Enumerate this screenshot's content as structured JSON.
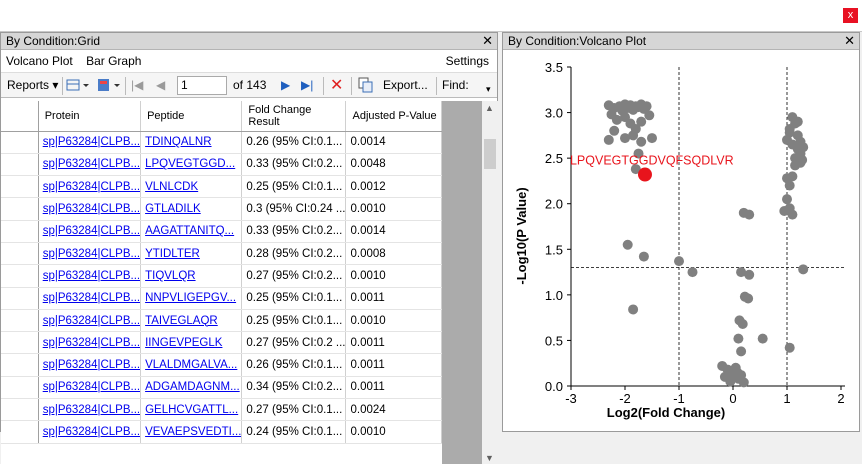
{
  "window": {
    "close_label": "x"
  },
  "grid_panel": {
    "title": "By Condition:Grid",
    "close": "✕",
    "menu": {
      "volcano": "Volcano Plot",
      "bar": "Bar Graph",
      "settings": "Settings"
    },
    "toolbar": {
      "reports": "Reports",
      "page": "1",
      "of_pages": "of 143",
      "export": "Export...",
      "find": "Find:"
    },
    "columns": [
      "Protein",
      "Peptide",
      "Fold Change Result",
      "Adjusted P-Value"
    ],
    "rows": [
      [
        "sp|P63284|CLPB...",
        "TDINQALNR",
        "0.26 (95% CI:0.1...",
        "0.0014"
      ],
      [
        "sp|P63284|CLPB...",
        "LPQVEGTGGD...",
        "0.33 (95% CI:0.2...",
        "0.0048"
      ],
      [
        "sp|P63284|CLPB...",
        "VLNLCDK",
        "0.25 (95% CI:0.1...",
        "0.0012"
      ],
      [
        "sp|P63284|CLPB...",
        "GTLADILK",
        "0.3 (95% CI:0.24 ...",
        "0.0010"
      ],
      [
        "sp|P63284|CLPB...",
        "AAGATTANITQ...",
        "0.33 (95% CI:0.2...",
        "0.0014"
      ],
      [
        "sp|P63284|CLPB...",
        "YTIDLTER",
        "0.28 (95% CI:0.2...",
        "0.0008"
      ],
      [
        "sp|P63284|CLPB...",
        "TIQVLQR",
        "0.27 (95% CI:0.2...",
        "0.0010"
      ],
      [
        "sp|P63284|CLPB...",
        "NNPVLIGEPGV...",
        "0.25 (95% CI:0.1...",
        "0.0011"
      ],
      [
        "sp|P63284|CLPB...",
        "TAIVEGLAQR",
        "0.25 (95% CI:0.1...",
        "0.0010"
      ],
      [
        "sp|P63284|CLPB...",
        "IINGEVPEGLK",
        "0.27 (95% CI:0.2 ...",
        "0.0011"
      ],
      [
        "sp|P63284|CLPB...",
        "VLALDMGALVA...",
        "0.26 (95% CI:0.1...",
        "0.0011"
      ],
      [
        "sp|P63284|CLPB...",
        "ADGAMDAGNM...",
        "0.34 (95% CI:0.2...",
        "0.0011"
      ],
      [
        "sp|P63284|CLPB...",
        "GELHCVGATTL...",
        "0.27 (95% CI:0.1...",
        "0.0024"
      ],
      [
        "sp|P63284|CLPB...",
        "VEVAEPSVEDTI...",
        "0.24 (95% CI:0.1...",
        "0.0010"
      ]
    ]
  },
  "plot_panel": {
    "title": "By Condition:Volcano Plot",
    "close": "✕"
  },
  "chart_data": {
    "type": "scatter",
    "xlabel": "Log2(Fold Change)",
    "ylabel": "-Log10(P Value)",
    "xlim": [
      -3,
      2
    ],
    "ylim": [
      0,
      3.5
    ],
    "xticks": [
      "-3",
      "-2",
      "-1",
      "0",
      "1",
      "2"
    ],
    "yticks": [
      "0.0",
      "0.5",
      "1.0",
      "1.5",
      "2.0",
      "2.5",
      "3.0",
      "3.5"
    ],
    "thresholds": {
      "x": [
        -1,
        1
      ],
      "y": 1.3
    },
    "highlight": {
      "label": "LPQVEGTGGDVQFSQDLVR",
      "x": -1.63,
      "y": 2.32,
      "color": "#e8141c"
    },
    "point_color": "#808080",
    "points": [
      [
        -2.3,
        3.08
      ],
      [
        -2.2,
        3.05
      ],
      [
        -2.1,
        3.07
      ],
      [
        -2.05,
        3.02
      ],
      [
        -2.0,
        3.09
      ],
      [
        -1.95,
        3.05
      ],
      [
        -1.9,
        3.08
      ],
      [
        -1.85,
        3.03
      ],
      [
        -1.8,
        3.07
      ],
      [
        -1.75,
        3.06
      ],
      [
        -1.7,
        3.09
      ],
      [
        -1.65,
        3.04
      ],
      [
        -1.6,
        3.07
      ],
      [
        -2.25,
        2.98
      ],
      [
        -2.15,
        2.92
      ],
      [
        -2.0,
        2.95
      ],
      [
        -1.9,
        2.88
      ],
      [
        -1.8,
        2.82
      ],
      [
        -1.7,
        2.9
      ],
      [
        -1.55,
        2.97
      ],
      [
        -2.2,
        2.8
      ],
      [
        -2.0,
        2.72
      ],
      [
        -1.85,
        2.75
      ],
      [
        -1.7,
        2.68
      ],
      [
        -1.5,
        2.72
      ],
      [
        -2.3,
        2.7
      ],
      [
        -1.75,
        2.55
      ],
      [
        -1.8,
        2.38
      ],
      [
        -1.95,
        1.55
      ],
      [
        -1.65,
        1.42
      ],
      [
        -1.85,
        0.84
      ],
      [
        -1.0,
        1.37
      ],
      [
        -0.75,
        1.25
      ],
      [
        0.2,
        1.9
      ],
      [
        0.3,
        1.88
      ],
      [
        0.15,
        1.25
      ],
      [
        0.3,
        1.22
      ],
      [
        0.22,
        0.98
      ],
      [
        0.28,
        0.96
      ],
      [
        0.12,
        0.72
      ],
      [
        0.18,
        0.68
      ],
      [
        0.1,
        0.52
      ],
      [
        0.15,
        0.38
      ],
      [
        0.55,
        0.52
      ],
      [
        -0.2,
        0.22
      ],
      [
        -0.1,
        0.18
      ],
      [
        0.0,
        0.12
      ],
      [
        0.05,
        0.2
      ],
      [
        0.1,
        0.08
      ],
      [
        -0.05,
        0.05
      ],
      [
        0.08,
        0.15
      ],
      [
        0.15,
        0.12
      ],
      [
        0.2,
        0.04
      ],
      [
        -0.15,
        0.1
      ],
      [
        1.0,
        2.28
      ],
      [
        1.05,
        2.2
      ],
      [
        1.1,
        2.3
      ],
      [
        1.0,
        2.05
      ],
      [
        1.05,
        1.95
      ],
      [
        1.1,
        1.88
      ],
      [
        0.95,
        1.92
      ],
      [
        1.1,
        2.95
      ],
      [
        1.15,
        2.88
      ],
      [
        1.05,
        2.82
      ],
      [
        1.2,
        2.75
      ],
      [
        1.0,
        2.7
      ],
      [
        1.1,
        2.65
      ],
      [
        1.2,
        2.6
      ],
      [
        1.25,
        2.55
      ],
      [
        1.15,
        2.5
      ],
      [
        1.3,
        2.62
      ],
      [
        1.25,
        2.45
      ],
      [
        1.05,
        2.78
      ],
      [
        1.2,
        2.9
      ],
      [
        1.25,
        2.68
      ],
      [
        1.28,
        2.48
      ],
      [
        1.15,
        2.42
      ],
      [
        1.3,
        1.28
      ],
      [
        1.05,
        0.42
      ]
    ]
  }
}
